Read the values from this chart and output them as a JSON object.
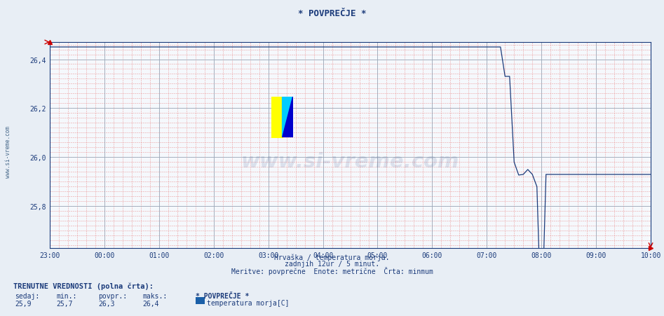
{
  "title": "* POVPREČJE *",
  "xlabel_line1": "Hrvaška / temperatura morja.",
  "xlabel_line2": "zadnjih 12ur / 5 minut.",
  "xlabel_line3": "Meritve: povprečne  Enote: metrične  Črta: minmum",
  "ylabel_text": "www.si-vreme.com",
  "bg_color": "#e8eef5",
  "plot_bg_color": "#f5f8fc",
  "line_color": "#1a3a7a",
  "title_color": "#1a3a7a",
  "tick_color": "#1a3a7a",
  "axis_color": "#1a3a7a",
  "red_dashed_color": "#e88888",
  "blue_solid_color": "#99aabb",
  "ylim": [
    25.63,
    26.47
  ],
  "ytick_vals": [
    25.8,
    26.0,
    26.2,
    26.4
  ],
  "ytick_labels": [
    "25,8",
    "26,0",
    "26,2",
    "26,4"
  ],
  "xtick_positions": [
    0,
    60,
    120,
    180,
    240,
    300,
    360,
    420,
    480,
    540,
    600,
    660
  ],
  "xtick_labels": [
    "23:00",
    "00:00",
    "01:00",
    "02:00",
    "03:00",
    "04:00",
    "05:00",
    "06:00",
    "07:00",
    "08:00",
    "09:00",
    "10:00"
  ],
  "xlim": [
    0,
    660
  ],
  "footer_line1": "TRENUTNE VREDNOSTI (polna črta):",
  "footer_headers": [
    "sedaj:",
    "min.:",
    "povpr.:",
    "maks.:"
  ],
  "footer_values": [
    "25,9",
    "25,7",
    "26,3",
    "26,4"
  ],
  "legend_name": "* POVPREČJE *",
  "legend_series": "temperatura morja[C]",
  "legend_color": "#1a5fa8",
  "watermark_text": "www.si-vreme.com",
  "watermark_color": "#1a3a7a",
  "watermark_alpha": 0.12
}
